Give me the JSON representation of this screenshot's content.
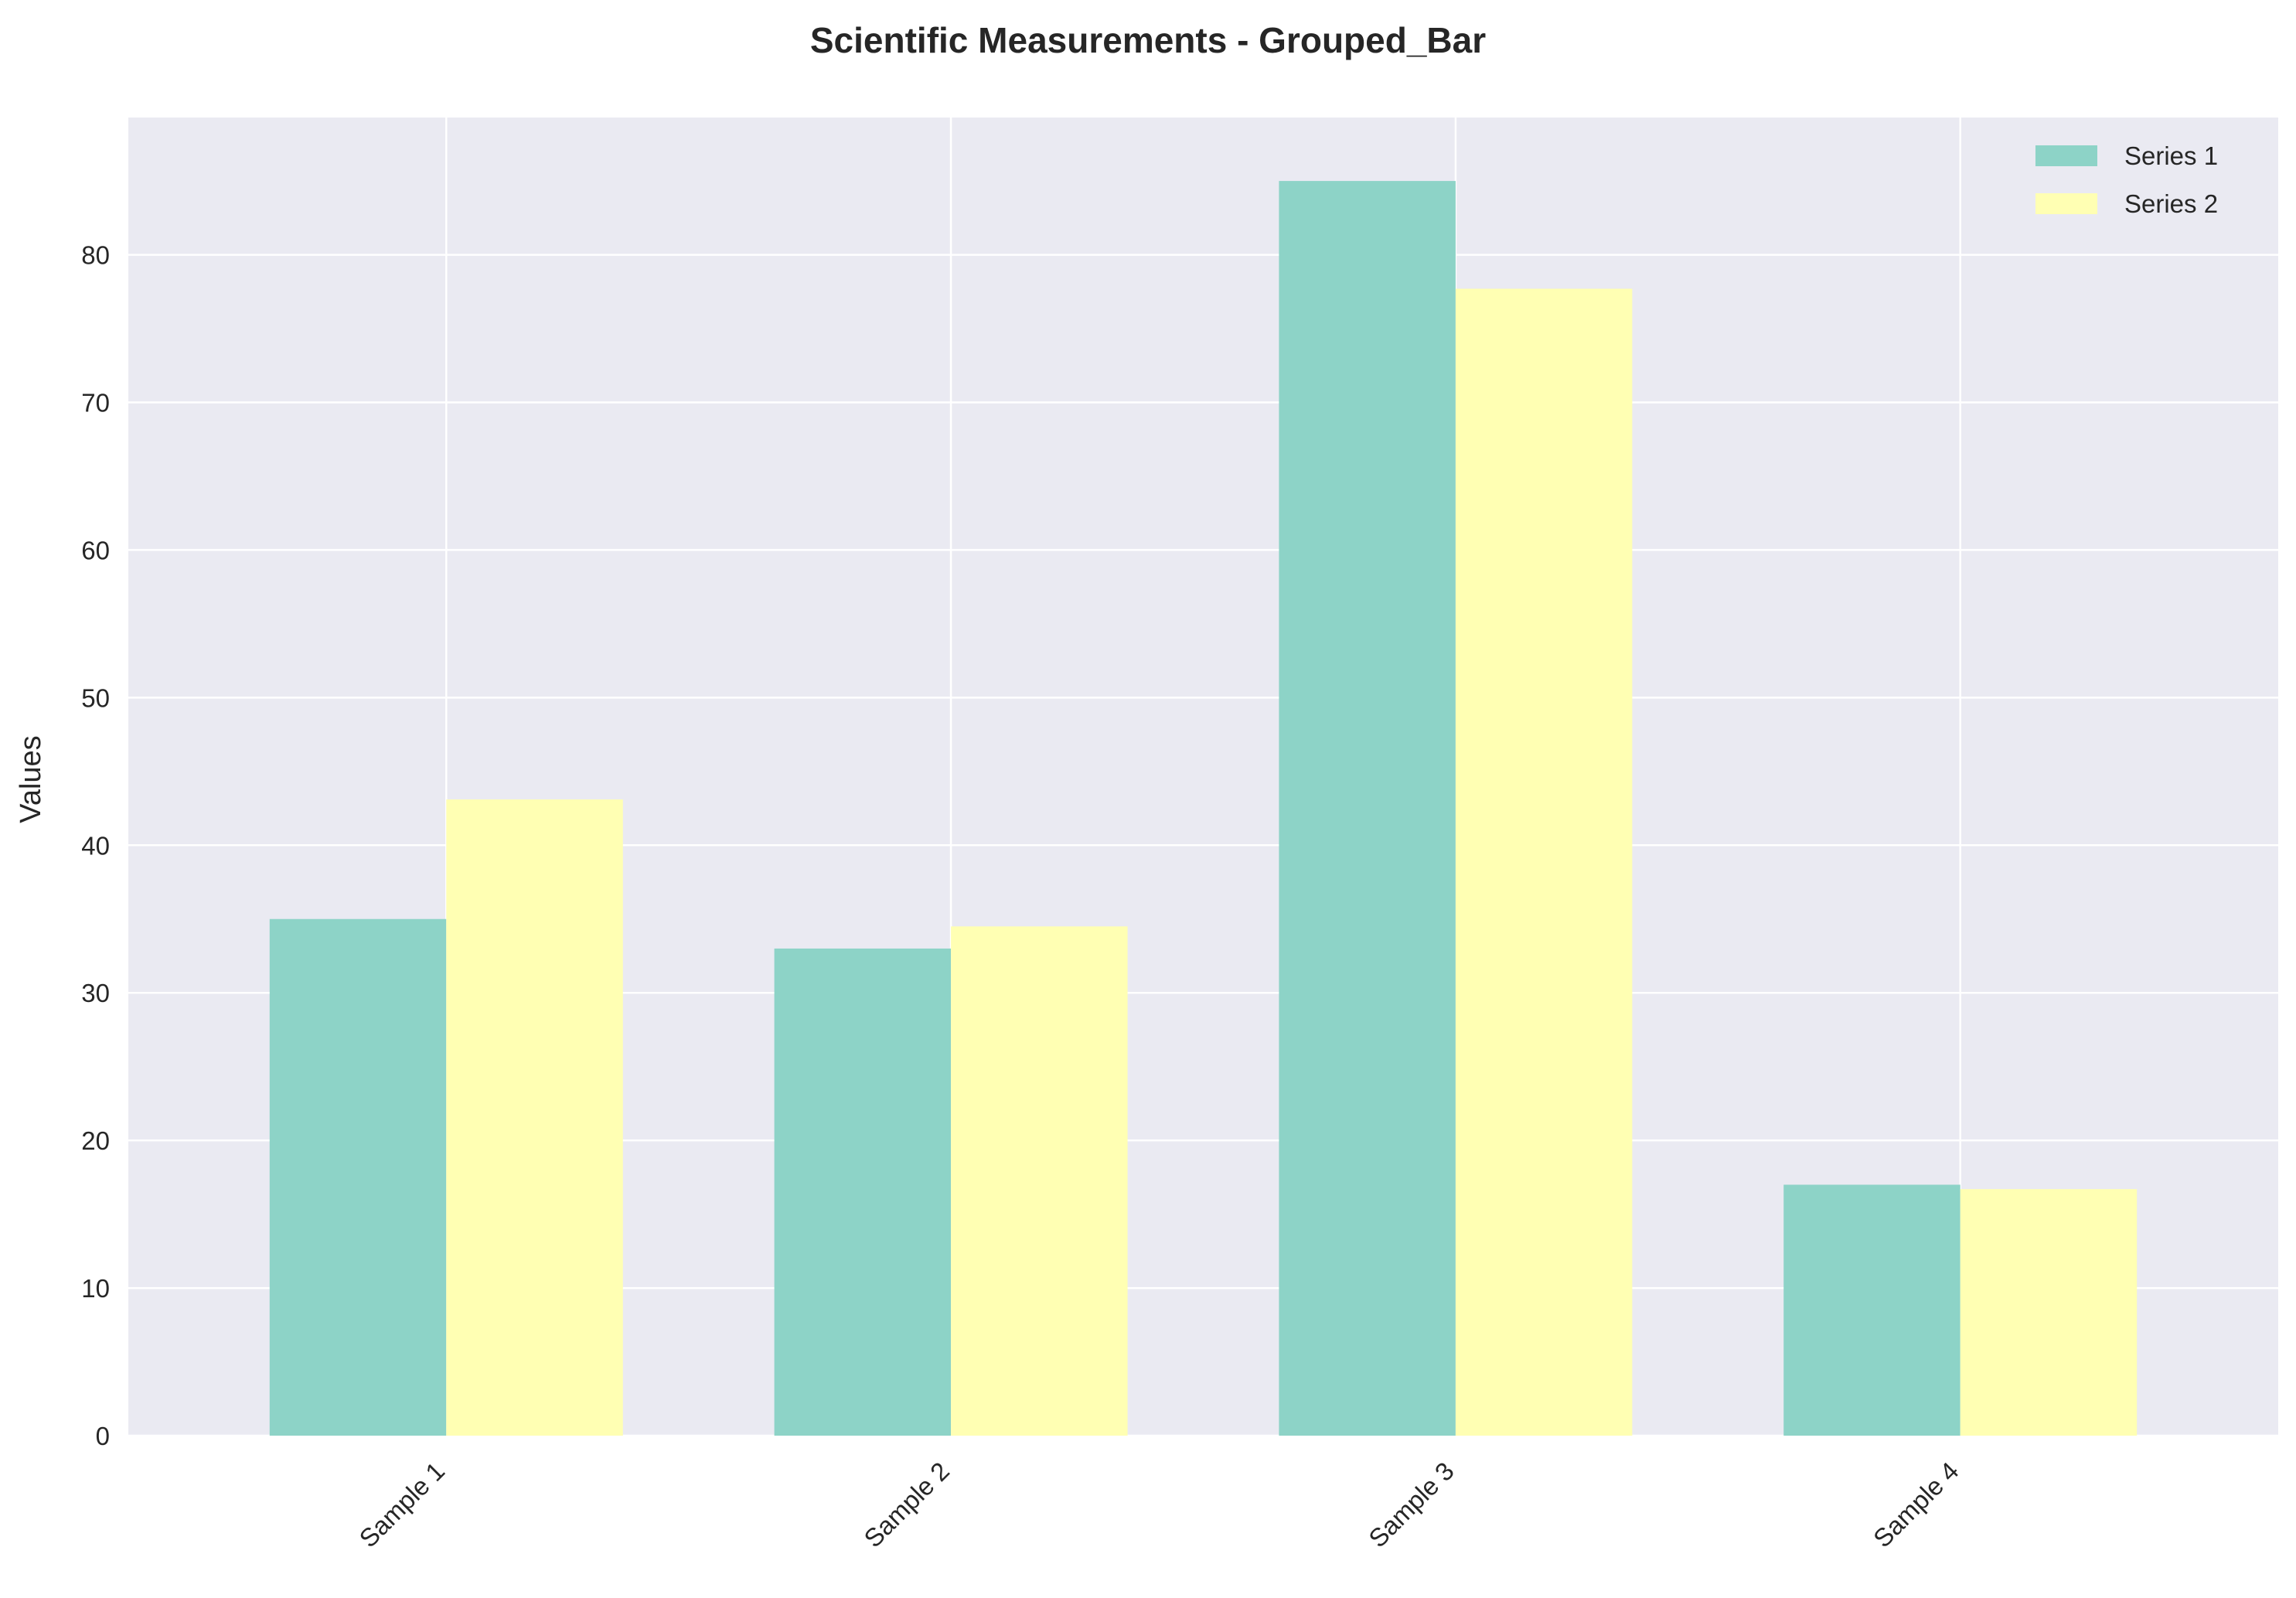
{
  "chart_data": {
    "type": "bar",
    "title": "Scientific Measurements - Grouped_Bar",
    "xlabel": "",
    "ylabel": "Values",
    "categories": [
      "Sample 1",
      "Sample 2",
      "Sample 3",
      "Sample 4"
    ],
    "series": [
      {
        "name": "Series 1",
        "color": "#8dd3c7",
        "values": [
          35.0,
          33.0,
          85.0,
          17.0
        ]
      },
      {
        "name": "Series 2",
        "color": "#ffffb3",
        "values": [
          43.1,
          34.5,
          77.7,
          16.7
        ]
      }
    ],
    "ylim": [
      0,
      89.3
    ],
    "yticks": [
      0,
      10,
      20,
      30,
      40,
      50,
      60,
      70,
      80
    ],
    "grid": true,
    "legend_position": "top-right",
    "background_color": "#eaeaf2",
    "grid_color": "#ffffff",
    "tick_label_rotation": "45"
  }
}
